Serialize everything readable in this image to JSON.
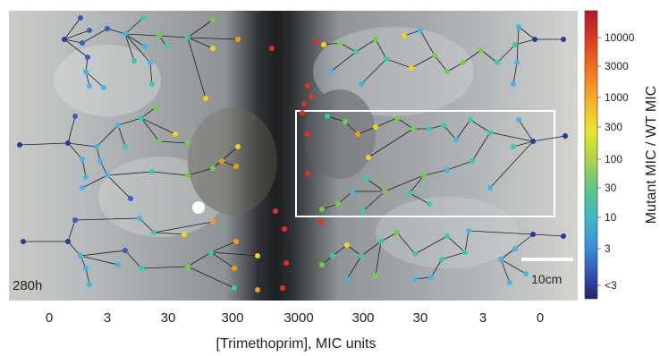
{
  "panel": {
    "time_label": "280h",
    "scale_bar_label": "10cm"
  },
  "x_axis": {
    "title": "[Trimethoprim], MIC units",
    "tick_labels": [
      "0",
      "3",
      "30",
      "300",
      "3000",
      "300",
      "30",
      "3",
      "0"
    ]
  },
  "colorbar": {
    "title": "Mutant MIC / WT MIC",
    "tick_labels": [
      "10000",
      "3000",
      "1000",
      "300",
      "100",
      "30",
      "10",
      "3",
      "<3"
    ],
    "colors": [
      "#d7191c",
      "#f46d43",
      "#fdae61",
      "#fee08b",
      "#d9ef8b",
      "#a6d96a",
      "#66bd63",
      "#5ab4ac",
      "#4ea3d8",
      "#3a6fc0",
      "#2b3990"
    ]
  },
  "colors": {
    "blue": "#3a5bc7",
    "lightblue": "#4ab3e6",
    "teal": "#38c9b0",
    "green": "#6fcf4a",
    "yellow": "#f2d21b",
    "orange": "#f39a1e",
    "red": "#e43022",
    "navy": "#2b3990"
  }
}
